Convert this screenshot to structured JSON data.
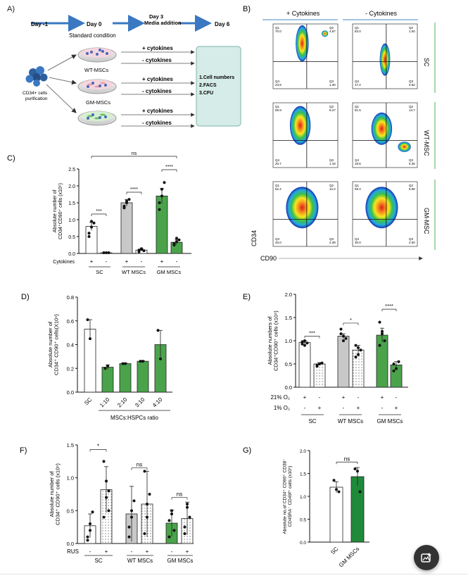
{
  "panelA": {
    "letter": "A)",
    "timeline": [
      "Day -1",
      "Day 0",
      "Day 3",
      "Media addition",
      "Day 6"
    ],
    "source": [
      "CD34+ cells",
      "purification"
    ],
    "conditions": [
      "Standard condition",
      "WT-MSCs",
      "GM-MSCs"
    ],
    "plus_cyto": "+ cytokines",
    "minus_cyto": "- cytokines",
    "readouts": [
      "1.Cell numbers",
      "2.FACS",
      "3.CFU"
    ]
  },
  "panelB": {
    "letter": "B)",
    "col_plus": "+ Cytokines",
    "col_minus": "- Cytokines",
    "rows": [
      "SC",
      "WT-MSC",
      "GM-MSC"
    ],
    "ylabel": "CD34",
    "xlabel": "CD90",
    "plots": [
      {
        "q1": "Q1",
        "v1": "70.0",
        "q2": "Q2",
        "v2": "4.87",
        "q3": "Q3",
        "v3": "1.30",
        "q4": "Q4",
        "v4": "23.8"
      },
      {
        "q1": "Q1",
        "v1": "83.0",
        "q2": "Q2",
        "v2": "1.00",
        "q3": "Q3",
        "v3": "0.62",
        "q4": "Q4",
        "v4": "17.2"
      },
      {
        "q1": "Q1",
        "v1": "69.9",
        "q2": "Q2",
        "v2": "8.27",
        "q3": "Q3",
        "v3": "1.18",
        "q4": "Q4",
        "v4": "20.7"
      },
      {
        "q1": "Q1",
        "v1": "61.5",
        "q2": "Q2",
        "v2": "14.7",
        "q3": "Q3",
        "v3": "5.35",
        "q4": "Q4",
        "v4": "18.5"
      },
      {
        "q1": "Q1",
        "v1": "52.4",
        "q2": "Q2",
        "v2": "12.2",
        "q3": "Q3",
        "v3": "2.39",
        "q4": "Q4",
        "v4": "33.0"
      },
      {
        "q1": "Q1",
        "v1": "59.4",
        "q2": "Q2",
        "v2": "8.58",
        "q3": "Q3",
        "v3": "2.00",
        "q4": "Q4",
        "v4": "30.0"
      }
    ]
  },
  "chart_data": [
    {
      "panel": "C",
      "type": "bar",
      "ylabel": "Absolute number of CD34⁺CD90⁺ cells (x10⁵)",
      "ylim": [
        0,
        2.5
      ],
      "yticks": [
        "0.0",
        "0.5",
        "1.0",
        "1.5",
        "2.0",
        "2.5"
      ],
      "row_label": "Cytokines",
      "signs": [
        "+",
        "-",
        "+",
        "-",
        "+",
        "-"
      ],
      "groups": [
        "SC",
        "WT MSCs",
        "GM MSCs"
      ],
      "values": [
        0.8,
        0.02,
        1.5,
        0.1,
        1.7,
        0.33
      ],
      "errors": [
        0.12,
        0.01,
        0.1,
        0.03,
        0.22,
        0.07
      ],
      "colors": [
        "#ffffff",
        "#ffffff",
        "#c8c8c8",
        "#ffffff",
        "#4aa34a",
        "#4aa34a"
      ],
      "significance": [
        "***",
        "****",
        "****",
        "ns"
      ]
    },
    {
      "panel": "D",
      "type": "bar",
      "ylabel": "Absolute number of CD34⁺ CD90⁺ cells(X10⁵)",
      "ylim": [
        0,
        0.8
      ],
      "yticks": [
        "0.0",
        "0.2",
        "0.4",
        "0.6",
        "0.8"
      ],
      "categories": [
        "SC",
        "1:10",
        "2:10",
        "3:10",
        "4:10"
      ],
      "values": [
        0.53,
        0.21,
        0.24,
        0.26,
        0.4
      ],
      "errors": [
        0.08,
        0.02,
        0.005,
        0.005,
        0.12
      ],
      "colors": [
        "#ffffff",
        "#4aa34a",
        "#4aa34a",
        "#4aa34a",
        "#4aa34a"
      ],
      "group_label": "MSCs:HSPCs ratio"
    },
    {
      "panel": "E",
      "type": "bar",
      "ylabel": "Absolute numbers of CD34⁺CD90⁺ cells (x10⁵)",
      "ylim": [
        0,
        2.0
      ],
      "yticks": [
        "0.0",
        "0.5",
        "1.0",
        "1.5",
        "2.0"
      ],
      "row1_label": "21% O₂",
      "row1": [
        "+",
        "-",
        "+",
        "-",
        "+",
        "-"
      ],
      "row2_label": "1% O₂",
      "row2": [
        "-",
        "+",
        "-",
        "+",
        "-",
        "+"
      ],
      "groups": [
        "SC",
        "WT MSCs",
        "GM MSCs"
      ],
      "values": [
        0.96,
        0.5,
        1.1,
        0.8,
        1.12,
        0.48
      ],
      "errors": [
        0.04,
        0.03,
        0.05,
        0.1,
        0.15,
        0.07
      ],
      "colors": [
        "#ffffff",
        "#ffffff",
        "#c8c8c8",
        "#c8c8c8",
        "#4aa34a",
        "#4aa34a"
      ],
      "significance": [
        "***",
        "*",
        "****"
      ]
    },
    {
      "panel": "F",
      "type": "bar",
      "ylabel": "Absolute number of CD34⁺ CD90⁺ cells (x10⁵)",
      "ylim": [
        0,
        1.5
      ],
      "yticks": [
        "0.0",
        "0.5",
        "1.0",
        "1.5"
      ],
      "row_label": "RUS",
      "signs": [
        "-",
        "+",
        "-",
        "+",
        "-",
        "+"
      ],
      "groups": [
        "SC",
        "WT MSCs",
        "GM MSCs"
      ],
      "values": [
        0.27,
        0.82,
        0.45,
        0.6,
        0.31,
        0.38
      ],
      "errors": [
        0.18,
        0.35,
        0.42,
        0.5,
        0.2,
        0.25
      ],
      "colors": [
        "#ffffff",
        "#ffffff",
        "#c8c8c8",
        "#c8c8c8",
        "#4aa34a",
        "#4aa34a"
      ],
      "significance": [
        "*",
        "ns",
        "ns"
      ]
    },
    {
      "panel": "G",
      "type": "bar",
      "ylabel": "Absolute no.of CD34⁺ CD90⁺ CD38⁻ CD45RA⁻ CD49f⁺ cells (x10⁵)",
      "ylim": [
        0,
        2.0
      ],
      "yticks": [
        "0.0",
        "0.5",
        "1.0",
        "1.5",
        "2.0"
      ],
      "categories": [
        "SC",
        "GM MSCs"
      ],
      "values": [
        1.2,
        1.43
      ],
      "errors": [
        0.12,
        0.2
      ],
      "colors": [
        "#ffffff",
        "#1f8a3a"
      ],
      "significance": [
        "ns"
      ]
    }
  ],
  "panel_letters": {
    "C": "C)",
    "D": "D)",
    "E": "E)",
    "F": "F)",
    "G": "G)"
  },
  "fab": {
    "icon": "image-edit-icon"
  }
}
